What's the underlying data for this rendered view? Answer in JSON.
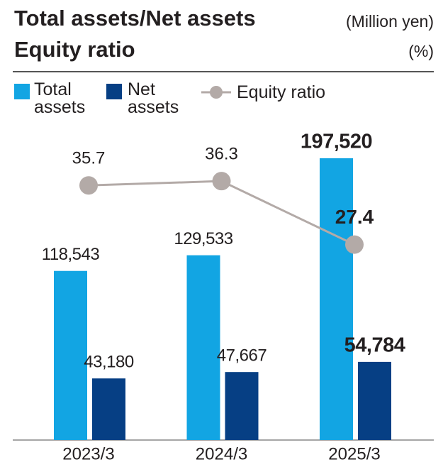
{
  "chart_data": {
    "type": "bar",
    "title": "Total assets/Net assets",
    "title_unit": "(Million yen)",
    "subtitle": "Equity ratio",
    "subtitle_unit": "(%)",
    "categories": [
      "2023/3",
      "2024/3",
      "2025/3"
    ],
    "series": [
      {
        "name": "Total assets",
        "color": "#12a5e3",
        "values": [
          118543,
          129533,
          197520
        ],
        "value_labels": [
          "118,543",
          "129,533",
          "197,520"
        ]
      },
      {
        "name": "Net assets",
        "color": "#063f84",
        "values": [
          43180,
          47667,
          54784
        ],
        "value_labels": [
          "43,180",
          "47,667",
          "54,784"
        ]
      },
      {
        "name": "Equity ratio",
        "color": "#b3aaa7",
        "values": [
          35.7,
          36.3,
          27.4
        ],
        "axis": "y2",
        "type": "line"
      }
    ],
    "ylim": [
      0,
      200000
    ],
    "y2lim": [
      0,
      40
    ],
    "legend": "top-left"
  }
}
